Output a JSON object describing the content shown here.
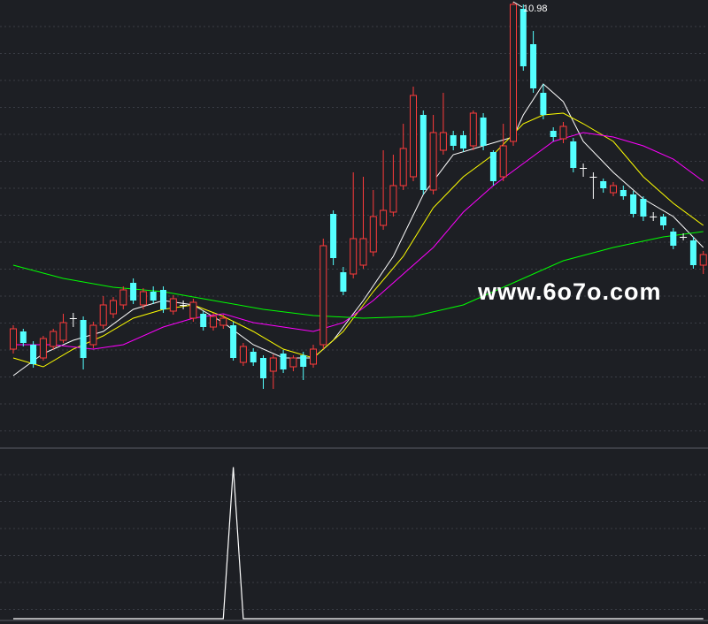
{
  "chart_data": [
    {
      "type": "candlestick",
      "open": [
        7.05,
        7.25,
        7.1,
        6.95,
        7.08,
        7.15,
        7.4,
        7.38,
        7.1,
        7.32,
        7.45,
        7.55,
        7.8,
        7.55,
        7.7,
        7.72,
        7.48,
        7.55,
        7.4,
        7.45,
        7.3,
        7.32,
        7.32,
        6.9,
        7.02,
        6.95,
        6.8,
        7.0,
        6.85,
        6.98,
        6.88,
        7.1,
        8.58,
        7.92,
        7.9,
        8.0,
        8.15,
        8.45,
        8.6,
        8.9,
        9.0,
        9.7,
        8.85,
        9.3,
        9.47,
        9.47,
        9.35,
        9.67,
        9.28,
        9.0,
        9.4,
        10.9,
        10.5,
        9.95,
        9.52,
        9.43,
        9.4,
        9.1,
        9.0,
        8.95,
        8.82,
        8.85,
        8.8,
        8.75,
        8.55,
        8.55,
        8.38,
        8.32,
        8.28,
        8.0
      ],
      "high": [
        7.32,
        7.28,
        7.14,
        7.2,
        7.28,
        7.45,
        7.46,
        7.42,
        7.36,
        7.65,
        7.64,
        7.76,
        7.85,
        7.74,
        7.76,
        7.76,
        7.66,
        7.6,
        7.62,
        7.48,
        7.46,
        7.44,
        7.36,
        7.12,
        7.06,
        6.98,
        6.99,
        7.04,
        6.98,
        7.02,
        7.1,
        8.3,
        8.62,
        7.98,
        9.05,
        9.0,
        8.85,
        9.3,
        9.25,
        9.6,
        10.02,
        9.75,
        9.7,
        9.95,
        9.52,
        9.52,
        9.75,
        9.72,
        9.3,
        9.6,
        10.98,
        10.95,
        10.65,
        10.05,
        9.56,
        9.62,
        9.44,
        9.15,
        9.05,
        8.98,
        8.94,
        8.9,
        8.84,
        8.78,
        8.6,
        8.58,
        8.42,
        8.36,
        8.32,
        8.16
      ],
      "low": [
        7.0,
        7.08,
        6.84,
        6.92,
        7.04,
        7.12,
        7.3,
        6.82,
        7.06,
        7.28,
        7.4,
        7.5,
        7.56,
        7.5,
        7.56,
        7.46,
        7.44,
        7.5,
        7.36,
        7.26,
        7.26,
        7.28,
        6.92,
        6.86,
        6.86,
        6.6,
        6.6,
        6.78,
        6.8,
        6.7,
        6.84,
        7.05,
        8.0,
        7.66,
        7.85,
        7.96,
        8.1,
        8.4,
        8.55,
        8.85,
        8.95,
        8.8,
        8.8,
        9.25,
        9.3,
        9.28,
        9.3,
        9.3,
        8.9,
        8.95,
        9.35,
        10.2,
        9.95,
        9.65,
        9.4,
        9.38,
        9.05,
        9.0,
        8.75,
        8.82,
        8.78,
        8.74,
        8.54,
        8.5,
        8.5,
        8.4,
        8.18,
        8.28,
        7.96,
        7.9
      ],
      "close": [
        7.28,
        7.12,
        6.88,
        7.17,
        7.25,
        7.35,
        7.4,
        6.95,
        7.32,
        7.55,
        7.6,
        7.72,
        7.6,
        7.7,
        7.6,
        7.5,
        7.62,
        7.55,
        7.58,
        7.3,
        7.42,
        7.4,
        6.95,
        7.08,
        6.9,
        6.72,
        6.95,
        6.82,
        6.95,
        6.85,
        7.05,
        8.22,
        8.08,
        7.7,
        8.3,
        8.3,
        8.55,
        8.62,
        8.9,
        9.32,
        9.92,
        8.85,
        9.5,
        9.5,
        9.35,
        9.32,
        9.72,
        9.35,
        8.95,
        9.35,
        10.95,
        10.25,
        10.0,
        9.7,
        9.45,
        9.57,
        9.1,
        9.1,
        9.0,
        8.87,
        8.9,
        8.78,
        8.58,
        8.55,
        8.55,
        8.45,
        8.22,
        8.32,
        8.0,
        8.12
      ],
      "up_color": "#ff3b3b",
      "down_color": "#54ffff",
      "flat_color": "#ffffff",
      "ylim": [
        6.0,
        11.0
      ],
      "high_label": "10.98",
      "watermark": "www.6o7o.com",
      "series": [
        {
          "color": "#ffffff",
          "x": [
            0,
            3,
            6,
            9,
            12,
            15,
            18,
            21,
            24,
            27,
            30,
            32,
            35,
            38,
            41,
            44,
            47,
            50,
            51,
            53,
            55,
            57,
            60,
            63,
            66,
            69
          ],
          "values": [
            6.75,
            7.0,
            7.15,
            7.25,
            7.5,
            7.6,
            7.55,
            7.35,
            7.1,
            6.95,
            6.95,
            7.15,
            7.6,
            8.1,
            8.8,
            9.25,
            9.35,
            9.45,
            9.7,
            10.05,
            9.85,
            9.4,
            9.05,
            8.75,
            8.55,
            8.2
          ]
        },
        {
          "color": "#ffff00",
          "x": [
            0,
            3,
            6,
            9,
            12,
            15,
            18,
            21,
            24,
            27,
            30,
            33,
            36,
            39,
            42,
            45,
            48,
            51,
            53,
            55,
            57,
            60,
            63,
            66,
            69
          ],
          "values": [
            6.95,
            6.85,
            7.05,
            7.2,
            7.4,
            7.5,
            7.55,
            7.42,
            7.25,
            7.05,
            6.95,
            7.25,
            7.7,
            8.1,
            8.65,
            9.0,
            9.25,
            9.6,
            9.7,
            9.72,
            9.6,
            9.4,
            9.0,
            8.7,
            8.45
          ]
        },
        {
          "color": "#ff00ff",
          "x": [
            0,
            4,
            8,
            11,
            15,
            18,
            21,
            24,
            27,
            30,
            33,
            36,
            39,
            42,
            45,
            48,
            51,
            54,
            57,
            60,
            63,
            66,
            69
          ],
          "values": [
            7.1,
            7.1,
            7.05,
            7.1,
            7.3,
            7.4,
            7.45,
            7.35,
            7.3,
            7.25,
            7.35,
            7.6,
            7.9,
            8.2,
            8.6,
            8.9,
            9.15,
            9.4,
            9.5,
            9.45,
            9.35,
            9.2,
            8.95
          ]
        },
        {
          "color": "#00ff00",
          "x": [
            0,
            5,
            10,
            15,
            20,
            25,
            30,
            35,
            40,
            45,
            50,
            55,
            60,
            65,
            69
          ],
          "values": [
            8.0,
            7.85,
            7.75,
            7.7,
            7.6,
            7.5,
            7.43,
            7.4,
            7.42,
            7.55,
            7.8,
            8.05,
            8.2,
            8.32,
            8.38
          ]
        }
      ]
    },
    {
      "type": "line",
      "color": "#ffffff",
      "ylim": [
        0,
        1.05
      ],
      "values": [
        0,
        0,
        0,
        0,
        0,
        0,
        0,
        0,
        0,
        0,
        0,
        0,
        0,
        0,
        0,
        0,
        0,
        0,
        0,
        0,
        0,
        0,
        1,
        0,
        0,
        0,
        0,
        0,
        0,
        0,
        0,
        0,
        0,
        0,
        0,
        0,
        0,
        0,
        0,
        0,
        0,
        0,
        0,
        0,
        0,
        0,
        0,
        0,
        0,
        0,
        0,
        0,
        0,
        0,
        0,
        0,
        0,
        0,
        0,
        0,
        0,
        0,
        0,
        0,
        0,
        0,
        0,
        0,
        0,
        0
      ]
    }
  ]
}
